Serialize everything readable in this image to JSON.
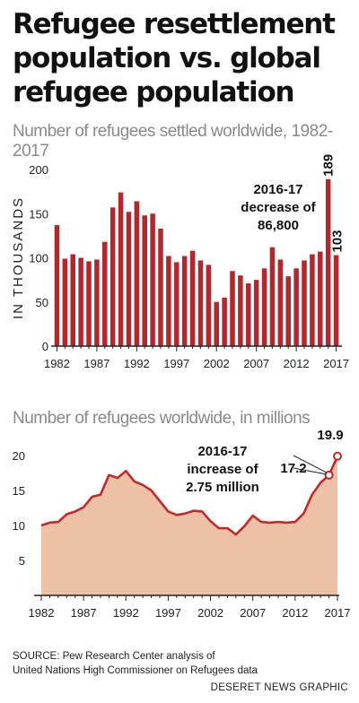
{
  "title": "Refugee resettlement population vs. global refugee population",
  "chart_data": [
    {
      "type": "bar",
      "title": "Number of refugees settled worldwide, 1982-2017",
      "ylabel": "IN THOUSANDS",
      "ylim": [
        0,
        200
      ],
      "yticks": [
        0,
        50,
        100,
        150,
        200
      ],
      "xtick_labels": [
        "1982",
        "1987",
        "1992",
        "1997",
        "2002",
        "2007",
        "2012",
        "2017"
      ],
      "categories": [
        1982,
        1983,
        1984,
        1985,
        1986,
        1987,
        1988,
        1989,
        1990,
        1991,
        1992,
        1993,
        1994,
        1995,
        1996,
        1997,
        1998,
        1999,
        2000,
        2001,
        2002,
        2003,
        2004,
        2005,
        2006,
        2007,
        2008,
        2009,
        2010,
        2011,
        2012,
        2013,
        2014,
        2015,
        2016,
        2017
      ],
      "values": [
        137,
        99,
        104,
        100,
        96,
        98,
        118,
        157,
        174,
        152,
        164,
        148,
        150,
        133,
        102,
        95,
        102,
        108,
        97,
        92,
        50,
        55,
        85,
        80,
        71,
        75,
        88,
        112,
        98,
        79,
        88,
        97,
        104,
        107,
        189,
        103
      ],
      "color": "#b5262c",
      "annotations": [
        {
          "text": "2016-17",
          "year": 2016
        },
        {
          "text": "decrease of",
          "year": 2016
        },
        {
          "text": "86,800",
          "year": 2016
        },
        {
          "text": "189",
          "year": 2016
        },
        {
          "text": "103",
          "year": 2017
        }
      ]
    },
    {
      "type": "area",
      "title": "Number of refugees worldwide, in millions",
      "ylim": [
        0,
        20
      ],
      "yticks": [
        5,
        10,
        15,
        20
      ],
      "xtick_labels": [
        "1982",
        "1987",
        "1992",
        "1997",
        "2002",
        "2007",
        "2012",
        "2017"
      ],
      "x": [
        1982,
        1983,
        1984,
        1985,
        1986,
        1987,
        1988,
        1989,
        1990,
        1991,
        1992,
        1993,
        1994,
        1995,
        1996,
        1997,
        1998,
        1999,
        2000,
        2001,
        2002,
        2003,
        2004,
        2005,
        2006,
        2007,
        2008,
        2009,
        2010,
        2011,
        2012,
        2013,
        2014,
        2015,
        2016,
        2017
      ],
      "values": [
        10.0,
        10.4,
        10.5,
        11.6,
        12.0,
        12.6,
        14.1,
        14.4,
        17.2,
        16.8,
        17.8,
        16.3,
        15.8,
        15.0,
        13.5,
        12.0,
        11.5,
        11.7,
        12.1,
        12.0,
        10.6,
        9.6,
        9.6,
        8.7,
        9.9,
        11.4,
        10.5,
        10.4,
        10.5,
        10.4,
        10.5,
        11.7,
        14.4,
        16.1,
        17.2,
        19.9
      ],
      "fill": "#ecc1a6",
      "line": "#c32b2b",
      "annotations": [
        {
          "text": "2016-17",
          "year": 2016
        },
        {
          "text": "increase of",
          "year": 2016
        },
        {
          "text": "2.75 million",
          "year": 2016
        },
        {
          "text": "17.2",
          "year": 2016
        },
        {
          "text": "19.9",
          "year": 2017
        }
      ]
    }
  ],
  "source": [
    "SOURCE: Pew Research Center analysis of",
    "United Nations High Commissioner on Refugees data"
  ],
  "credit": "DESERET NEWS GRAPHIC"
}
